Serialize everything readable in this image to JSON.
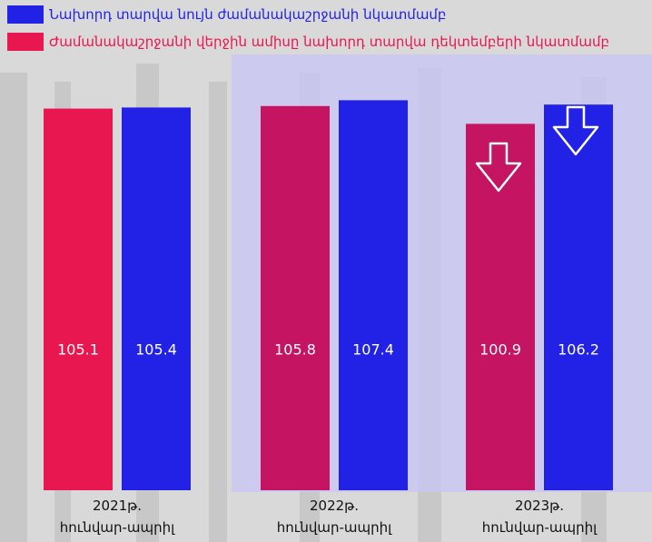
{
  "chart_data": {
    "type": "bar",
    "categories": [
      "2021թ. հունվար-ապրիլ",
      "2022թ. հունվար-ապրիլ",
      "2023թ. հունվար-ապրիլ"
    ],
    "series": [
      {
        "name": "Ժամանակաշրջանի վերջին ամիսը նախորդ տարվա դեկտեմբերի նկատմամբ",
        "color": "#e8174f",
        "colors": [
          "#e8174f",
          "#c41462",
          "#c41462"
        ],
        "values": [
          105.1,
          105.8,
          100.9
        ]
      },
      {
        "name": "Նախորդ տարվա նույն ժամանակաշրջանի նկատմամբ",
        "color": "#2222e6",
        "values": [
          105.4,
          107.4,
          106.2
        ]
      }
    ],
    "ylim": [
      0,
      110
    ]
  }
}
